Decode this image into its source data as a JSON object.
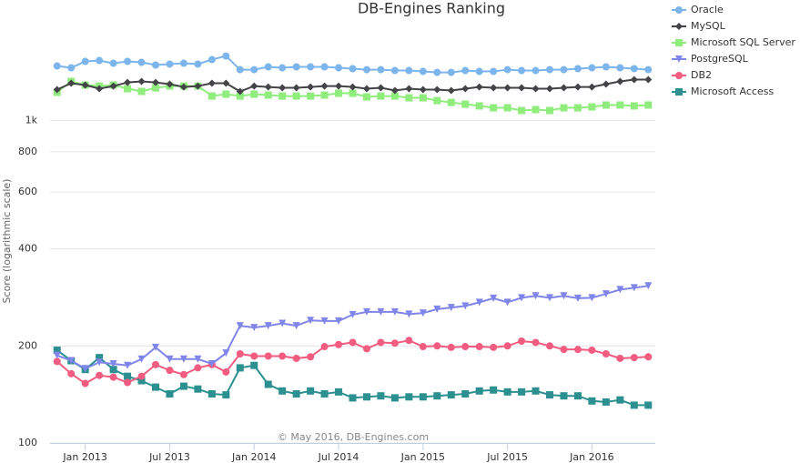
{
  "chart_data": {
    "type": "line",
    "title": "DB-Engines Ranking",
    "y_label": "Score (logarithmic scale)",
    "annotation": "© May 2016, DB-Engines.com",
    "log_scale": true,
    "grid": true,
    "legend": "top-right",
    "categories": [
      null,
      null,
      "Jan 2013",
      null,
      null,
      null,
      null,
      null,
      "Jul 2013",
      null,
      null,
      null,
      null,
      null,
      "Jan 2014",
      null,
      null,
      null,
      null,
      null,
      "Jul 2014",
      null,
      null,
      null,
      null,
      null,
      "Jan 2015",
      null,
      null,
      null,
      null,
      null,
      "Jul 2015",
      null,
      null,
      null,
      null,
      null,
      "Jan 2016",
      null,
      null,
      null,
      null
    ],
    "ylim": [
      100,
      1800
    ],
    "yticks": [
      100,
      200,
      400,
      600,
      800,
      {
        "value": 1000,
        "label": "1k"
      }
    ],
    "series": [
      {
        "name": "Oracle",
        "color": "#7cb5ec",
        "marker": "circle",
        "values": [
          1476,
          1457,
          1525,
          1535,
          1505,
          1525,
          1515,
          1486,
          1496,
          1505,
          1496,
          1545,
          1585,
          1438,
          1438,
          1467,
          1457,
          1467,
          1467,
          1467,
          1457,
          1448,
          1438,
          1438,
          1429,
          1429,
          1420,
          1410,
          1410,
          1429,
          1420,
          1420,
          1438,
          1429,
          1429,
          1438,
          1438,
          1448,
          1457,
          1467,
          1457,
          1448,
          1438
        ]
      },
      {
        "name": "MySQL",
        "color": "#434348",
        "marker": "diamond",
        "values": [
          1247,
          1305,
          1288,
          1255,
          1279,
          1313,
          1322,
          1313,
          1297,
          1271,
          1279,
          1305,
          1305,
          1231,
          1279,
          1271,
          1263,
          1263,
          1271,
          1279,
          1279,
          1271,
          1255,
          1263,
          1239,
          1255,
          1247,
          1247,
          1239,
          1255,
          1271,
          1263,
          1263,
          1263,
          1255,
          1255,
          1263,
          1271,
          1271,
          1297,
          1322,
          1339,
          1339
        ]
      },
      {
        "name": "Microsoft SQL Server",
        "color": "#90ed7d",
        "marker": "square",
        "values": [
          1223,
          1322,
          1288,
          1279,
          1288,
          1255,
          1231,
          1263,
          1279,
          1279,
          1279,
          1191,
          1207,
          1191,
          1207,
          1199,
          1191,
          1191,
          1191,
          1199,
          1215,
          1215,
          1184,
          1191,
          1191,
          1176,
          1176,
          1153,
          1138,
          1124,
          1110,
          1095,
          1095,
          1074,
          1081,
          1074,
          1095,
          1095,
          1102,
          1117,
          1117,
          1110,
          1117
        ]
      },
      {
        "name": "PostgreSQL",
        "color": "#8085e9",
        "marker": "triangle-down",
        "values": [
          187,
          180,
          170,
          178,
          176,
          174,
          182,
          198,
          182,
          182,
          182,
          176,
          190,
          231,
          228,
          231,
          235,
          231,
          240,
          239,
          239,
          250,
          255,
          255,
          255,
          251,
          253,
          260,
          263,
          266,
          273,
          281,
          273,
          282,
          286,
          282,
          286,
          281,
          282,
          290,
          299,
          303,
          307
        ]
      },
      {
        "name": "DB2",
        "color": "#f15c80",
        "marker": "circle",
        "values": [
          179,
          164,
          153,
          162,
          160,
          154,
          161,
          175,
          168,
          163,
          171,
          175,
          166,
          189,
          186,
          186,
          186,
          183,
          185,
          199,
          202,
          205,
          196,
          205,
          204,
          208,
          199,
          200,
          198,
          199,
          199,
          198,
          200,
          207,
          205,
          200,
          195,
          195,
          194,
          189,
          183,
          184,
          185
        ]
      },
      {
        "name": "Microsoft Access",
        "color": "#2b908f",
        "marker": "square",
        "values": [
          194,
          180,
          169,
          184,
          169,
          161,
          156,
          149,
          142,
          150,
          147,
          142,
          141,
          171,
          174,
          152,
          145,
          142,
          145,
          142,
          144,
          138,
          139,
          140,
          138,
          139,
          139,
          140,
          141,
          142,
          145,
          146,
          144,
          144,
          145,
          141,
          140,
          140,
          135,
          134,
          136,
          131,
          131
        ]
      }
    ]
  }
}
